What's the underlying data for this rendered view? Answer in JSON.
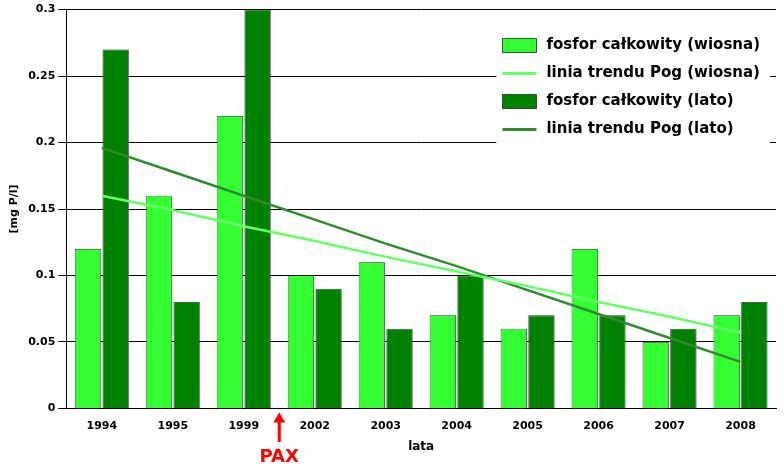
{
  "chart_data": {
    "type": "bar",
    "x_label": "lata",
    "y_label": "[mg P/l]",
    "categories": [
      "1994",
      "1995",
      "1999",
      "2002",
      "2003",
      "2004",
      "2005",
      "2006",
      "2007",
      "2008"
    ],
    "series": [
      {
        "name": "fosfor całkowity (wiosna)",
        "type": "bar",
        "color": "#33ff33",
        "values": [
          0.12,
          0.16,
          0.22,
          0.1,
          0.11,
          0.07,
          0.06,
          0.12,
          0.05,
          0.07
        ]
      },
      {
        "name": "linia trendu Pog (wiosna)",
        "type": "line",
        "color": "#66ff66",
        "line_style": "solid",
        "values": [
          0.16,
          0.149,
          0.137,
          0.126,
          0.114,
          0.103,
          0.092,
          0.08,
          0.069,
          0.057
        ]
      },
      {
        "name": "fosfor całkowity (lato)",
        "type": "bar",
        "color": "#008000",
        "values": [
          0.27,
          0.08,
          0.3,
          0.09,
          0.06,
          0.1,
          0.07,
          0.07,
          0.06,
          0.08
        ]
      },
      {
        "name": "linia trendu Pog (lato)",
        "type": "line",
        "color": "#2e8b2e",
        "line_style": "solid",
        "values": [
          0.196,
          0.178,
          0.16,
          0.142,
          0.124,
          0.107,
          0.089,
          0.071,
          0.053,
          0.035
        ]
      }
    ],
    "ylim": [
      0,
      0.3
    ],
    "yticks": [
      0,
      0.05,
      0.1,
      0.15,
      0.2,
      0.25,
      0.3
    ],
    "grid": true,
    "legend": "upper right",
    "annotation": {
      "text": "PAX",
      "between": [
        "1999",
        "2002"
      ],
      "color": "#ff0000"
    }
  }
}
